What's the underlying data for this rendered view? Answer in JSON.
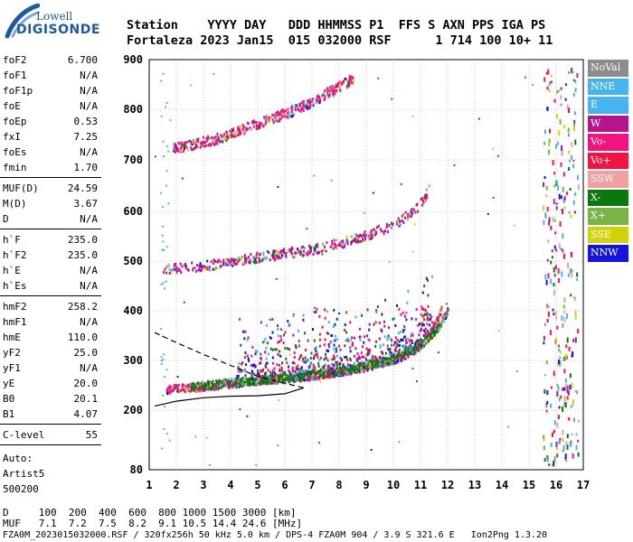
{
  "logo": {
    "top": "Lowell",
    "bottom": "DIGISONDE"
  },
  "header": {
    "labels": "Station    YYYY DAY   DDD HHMMSS P1  FFS S AXN PPS IGA PS",
    "values": "Fortaleza 2023 Jan15  015 032000 RSF      1 714 100 10+ 11"
  },
  "params": {
    "group1": [
      {
        "name": "foF2",
        "value": "6.700"
      },
      {
        "name": "foF1",
        "value": "N/A"
      },
      {
        "name": "foF1p",
        "value": "N/A"
      },
      {
        "name": "foE",
        "value": "N/A"
      },
      {
        "name": "foEp",
        "value": "0.53"
      },
      {
        "name": "fxI",
        "value": "7.25"
      },
      {
        "name": "foEs",
        "value": "N/A"
      },
      {
        "name": "fmin",
        "value": "1.70"
      }
    ],
    "group2": [
      {
        "name": "MUF(D)",
        "value": "24.59"
      },
      {
        "name": "M(D)",
        "value": "3.67"
      },
      {
        "name": "D",
        "value": "N/A"
      }
    ],
    "group3": [
      {
        "name": "h`F",
        "value": "235.0"
      },
      {
        "name": "h`F2",
        "value": "235.0"
      },
      {
        "name": "h`E",
        "value": "N/A"
      },
      {
        "name": "h`Es",
        "value": "N/A"
      }
    ],
    "group4": [
      {
        "name": "hmF2",
        "value": "258.2"
      },
      {
        "name": "hmF1",
        "value": "N/A"
      },
      {
        "name": "hmE",
        "value": "110.0"
      },
      {
        "name": "yF2",
        "value": "25.0"
      },
      {
        "name": "yF1",
        "value": "N/A"
      },
      {
        "name": "yE",
        "value": "20.0"
      },
      {
        "name": "B0",
        "value": "20.1"
      },
      {
        "name": "B1",
        "value": "4.07"
      }
    ],
    "clevel": {
      "name": "C-level",
      "value": "55"
    },
    "auto": [
      "Auto:",
      "Artist5",
      "500200"
    ]
  },
  "legend": [
    {
      "label": "NoVal",
      "color": "#8c8c8c"
    },
    {
      "label": "NNE",
      "color": "#46b4f0"
    },
    {
      "label": "E",
      "color": "#46b4f0"
    },
    {
      "label": "W",
      "color": "#b4148c"
    },
    {
      "label": "Vo-",
      "color": "#f0147c"
    },
    {
      "label": "Vo+",
      "color": "#f01440"
    },
    {
      "label": "SSW",
      "color": "#f0a0a0"
    },
    {
      "label": "X-",
      "color": "#0a780a"
    },
    {
      "label": "X+",
      "color": "#78b448"
    },
    {
      "label": "SSE",
      "color": "#d2d20a"
    },
    {
      "label": "NNW",
      "color": "#1414dc"
    }
  ],
  "footer": {
    "d_line": "D     100  200  400  600  800 1000 1500 3000 [km]",
    "muf_line": "MUF   7.1  7.2  7.5  8.2  9.1 10.5 14.4 24.6 [MHz]",
    "file_line": "FZA0M_2023015032000.RSF / 320fx256h 50 kHz 5.0 km / DPS-4 FZA0M 904 / 3.9 S 321.6 E   Ion2Png 1.3.20"
  },
  "chart_data": {
    "type": "scatter",
    "xlim": [
      1,
      17
    ],
    "ylim": [
      80,
      900
    ],
    "x_ticks": [
      1,
      2,
      3,
      4,
      5,
      6,
      7,
      8,
      9,
      10,
      11,
      12,
      13,
      14,
      15,
      16,
      17
    ],
    "y_ticks": [
      80,
      200,
      300,
      400,
      500,
      600,
      700,
      800,
      900
    ],
    "grid": true,
    "traces": [
      {
        "name": "O-trace 1st hop",
        "color": "#f0147c",
        "points": [
          [
            1.6,
            240
          ],
          [
            2,
            243
          ],
          [
            3,
            246
          ],
          [
            4,
            252
          ],
          [
            5,
            258
          ],
          [
            6,
            262
          ],
          [
            7,
            268
          ],
          [
            8,
            276
          ],
          [
            9,
            286
          ],
          [
            10,
            300
          ],
          [
            10.8,
            320
          ],
          [
            11.3,
            350
          ],
          [
            11.6,
            380
          ],
          [
            11.8,
            410
          ]
        ]
      },
      {
        "name": "X-trace 1st hop",
        "color": "#0a780a",
        "points": [
          [
            2.5,
            245
          ],
          [
            4,
            255
          ],
          [
            6,
            264
          ],
          [
            8,
            278
          ],
          [
            10,
            302
          ],
          [
            11,
            330
          ],
          [
            11.7,
            370
          ],
          [
            12,
            400
          ]
        ]
      },
      {
        "name": "2nd hop",
        "color": "#b4148c",
        "points": [
          [
            1.4,
            480
          ],
          [
            2,
            483
          ],
          [
            3,
            488
          ],
          [
            4,
            497
          ],
          [
            5,
            506
          ],
          [
            6,
            514
          ],
          [
            7,
            522
          ],
          [
            8,
            534
          ],
          [
            9,
            550
          ],
          [
            10,
            572
          ],
          [
            10.8,
            600
          ],
          [
            11.3,
            640
          ]
        ]
      },
      {
        "name": "3rd hop",
        "color": "#f0147c",
        "points": [
          [
            1.8,
            720
          ],
          [
            2.5,
            728
          ],
          [
            3.5,
            740
          ],
          [
            4.5,
            760
          ],
          [
            5.5,
            780
          ],
          [
            6.5,
            800
          ],
          [
            7.5,
            830
          ],
          [
            8.5,
            860
          ]
        ]
      }
    ],
    "profile": [
      [
        1.2,
        208
      ],
      [
        2,
        218
      ],
      [
        3,
        225
      ],
      [
        4,
        228
      ],
      [
        5,
        229
      ],
      [
        6,
        233
      ],
      [
        6.7,
        245
      ]
    ],
    "profile_dashed": [
      [
        1.2,
        356
      ],
      [
        2,
        336
      ],
      [
        3,
        312
      ],
      [
        4,
        290
      ],
      [
        5,
        268
      ],
      [
        6,
        254
      ],
      [
        6.7,
        245
      ]
    ]
  }
}
